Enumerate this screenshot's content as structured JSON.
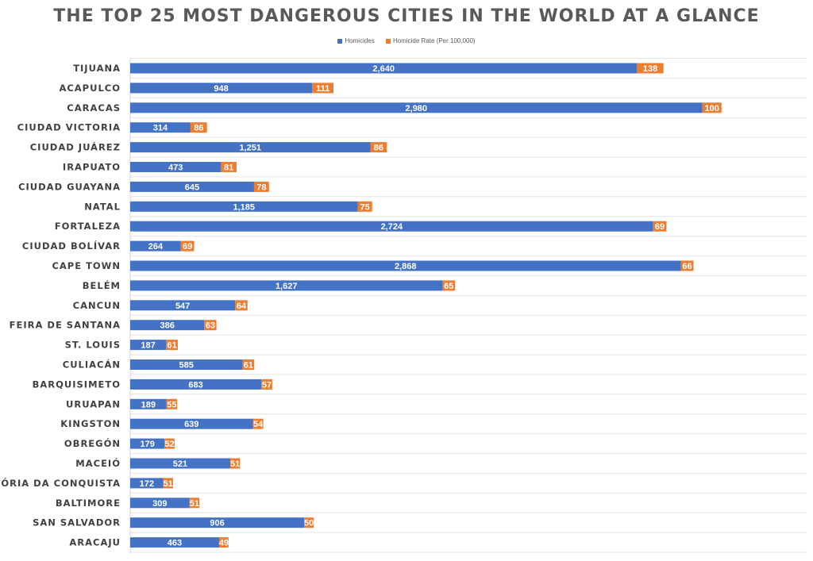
{
  "chart_data": {
    "type": "bar",
    "orientation": "horizontal",
    "stacked": true,
    "title": "THE TOP 25 MOST DANGEROUS CITIES IN THE WORLD AT A GLANCE",
    "legend_position": "top",
    "grid": true,
    "categories": [
      "TIJUANA",
      "ACAPULCO",
      "CARACAS",
      "CIUDAD VICTORIA",
      "CIUDAD JUÁREZ",
      "IRAPUATO",
      "CIUDAD GUAYANA",
      "NATAL",
      "FORTALEZA",
      "CIUDAD BOLÍVAR",
      "CAPE TOWN",
      "BELÉM",
      "CANCUN",
      "FEIRA DE SANTANA",
      "ST. LOUIS",
      "CULIACÁN",
      "BARQUISIMETO",
      "URUAPAN",
      "KINGSTON",
      "OBREGÓN",
      "MACEIÓ",
      "VITÓRIA DA CONQUISTA",
      "BALTIMORE",
      "SAN SALVADOR",
      "ARACAJU"
    ],
    "series": [
      {
        "name": "Homicides",
        "color": "#4472c4",
        "values": [
          2640,
          948,
          2980,
          314,
          1251,
          473,
          645,
          1185,
          2724,
          264,
          2868,
          1627,
          547,
          386,
          187,
          585,
          683,
          189,
          639,
          179,
          521,
          172,
          309,
          906,
          463
        ],
        "labels": [
          "2,640",
          "948",
          "2,980",
          "314",
          "1,251",
          "473",
          "645",
          "1,185",
          "2,724",
          "264",
          "2,868",
          "1,627",
          "547",
          "386",
          "187",
          "585",
          "683",
          "189",
          "639",
          "179",
          "521",
          "172",
          "309",
          "906",
          "463"
        ]
      },
      {
        "name": "Homicide Rate (Per 100,000)",
        "color": "#ed7d31",
        "values": [
          138,
          111,
          100,
          86,
          86,
          81,
          78,
          75,
          69,
          69,
          66,
          65,
          64,
          63,
          61,
          61,
          57,
          55,
          54,
          52,
          51,
          51,
          51,
          50,
          49
        ],
        "labels": [
          "138",
          "111",
          "100",
          "86",
          "86",
          "81",
          "78",
          "75",
          "69",
          "69",
          "66",
          "65",
          "64",
          "63",
          "61",
          "61",
          "57",
          "55",
          "54",
          "52",
          "51",
          "51",
          "51",
          "50",
          "49"
        ]
      }
    ]
  }
}
